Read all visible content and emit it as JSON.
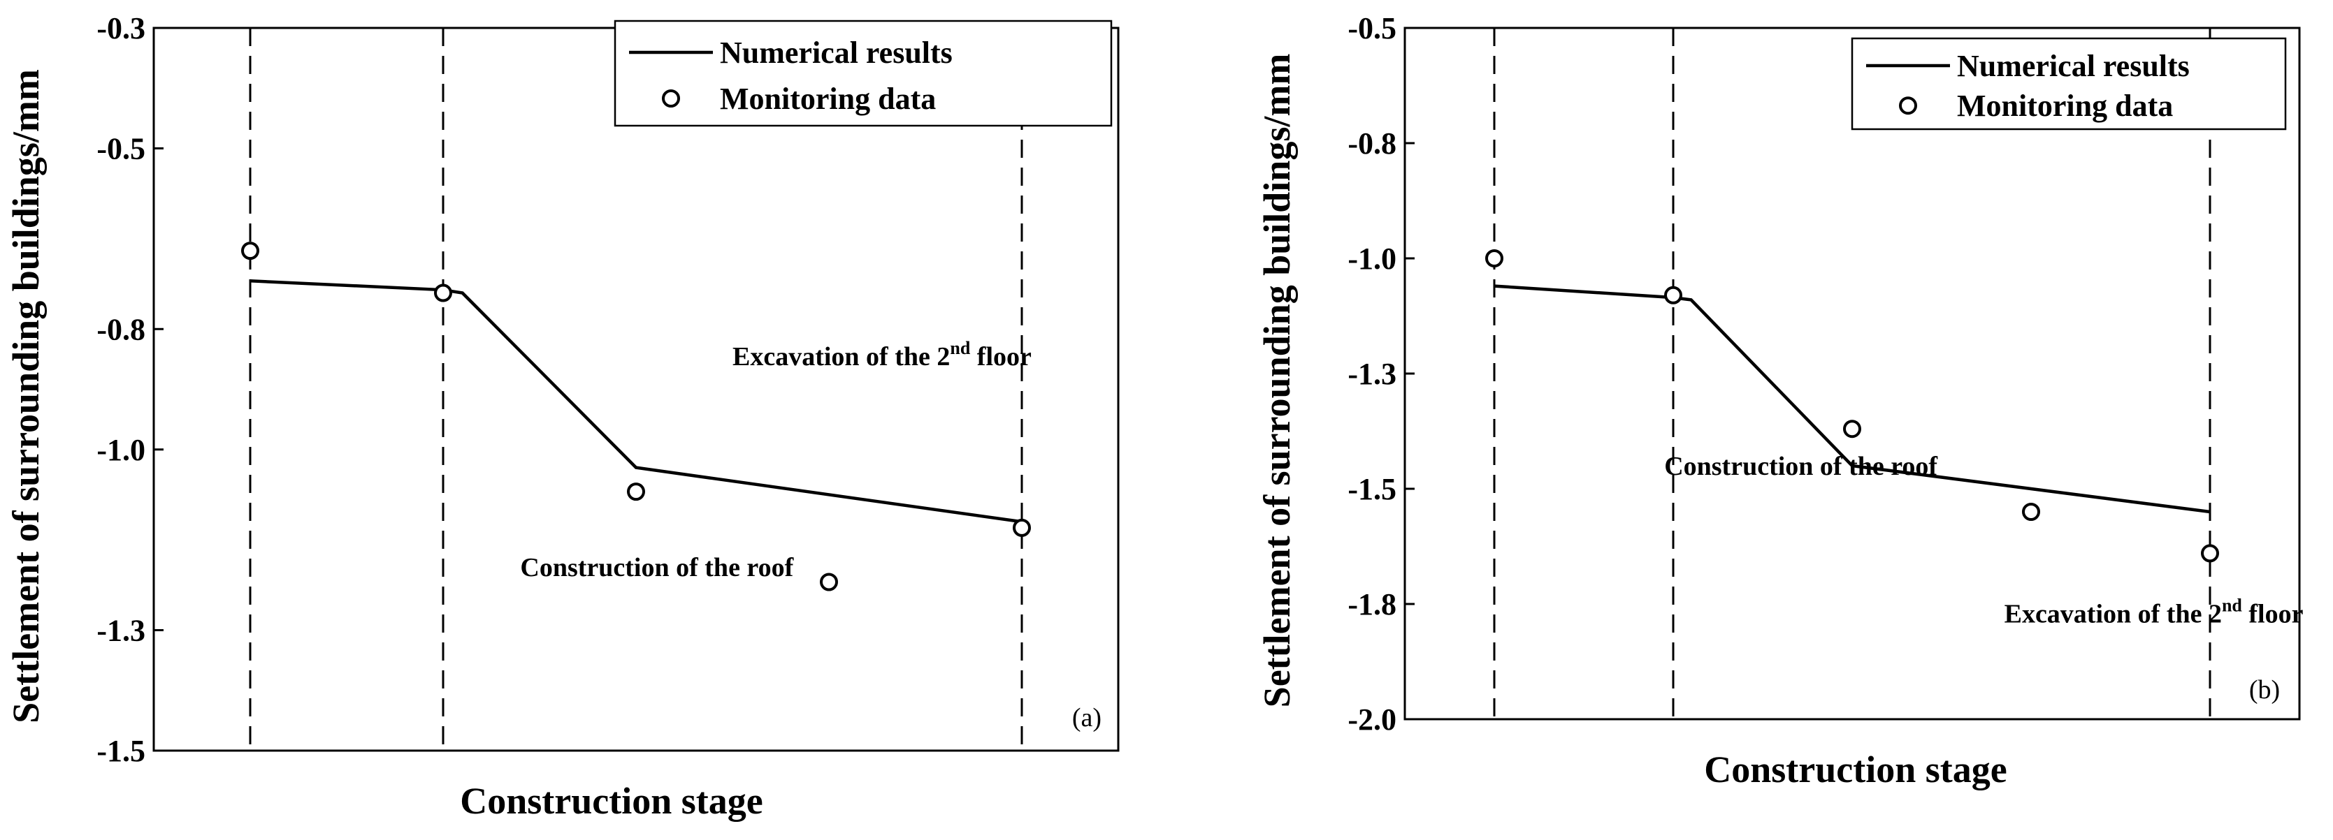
{
  "chart_data": [
    {
      "type": "line",
      "panel_label": "(a)",
      "xlabel": "Construction stage",
      "ylabel": "Settlement of surrounding buildings/mm",
      "ylim": [
        -1.5,
        -0.3
      ],
      "yticks": [
        "-0.3",
        "-0.5",
        "-0.8",
        "-1.0",
        "-1.3",
        "-1.5"
      ],
      "ytick_values": [
        -0.3,
        -0.5,
        -0.8,
        -1.0,
        -1.3,
        -1.5
      ],
      "xlim": [
        0,
        5
      ],
      "grid": false,
      "legend_position": "top-right",
      "stage_dividers": [
        0.5,
        1.5,
        4.5
      ],
      "series": [
        {
          "name": "Numerical results",
          "style": "line",
          "x": [
            0.5,
            1.5,
            1.6,
            2.5,
            4.5
          ],
          "y": [
            -0.72,
            -0.735,
            -0.74,
            -1.03,
            -1.12
          ]
        },
        {
          "name": "Monitoring data",
          "style": "marker",
          "x": [
            0.5,
            1.5,
            2.5,
            3.5,
            4.5
          ],
          "y": [
            -0.67,
            -0.74,
            -1.07,
            -1.22,
            -1.13
          ]
        }
      ],
      "annotations": [
        {
          "main": "Excavation of the 2",
          "sup": "nd",
          "rest": " floor",
          "x": 3.0,
          "y": -0.86
        },
        {
          "main": "Construction of the roof",
          "sup": "",
          "rest": "",
          "x": 1.9,
          "y": -1.21
        }
      ]
    },
    {
      "type": "line",
      "panel_label": "(b)",
      "xlabel": "Construction stage",
      "ylabel": "Settlement of surrounding buildings/mm",
      "ylim": [
        -2.0,
        -0.5
      ],
      "yticks": [
        "-0.5",
        "-0.8",
        "-1.0",
        "-1.3",
        "-1.5",
        "-1.8",
        "-2.0"
      ],
      "ytick_values": [
        -0.5,
        -0.75,
        -1.0,
        -1.25,
        -1.5,
        -1.75,
        -2.0
      ],
      "xlim": [
        0,
        5
      ],
      "grid": false,
      "legend_position": "top-right",
      "stage_dividers": [
        0.5,
        1.5,
        4.5
      ],
      "series": [
        {
          "name": "Numerical results",
          "style": "line",
          "x": [
            0.5,
            1.5,
            1.6,
            2.5,
            4.5
          ],
          "y": [
            -1.06,
            -1.085,
            -1.09,
            -1.45,
            -1.55
          ]
        },
        {
          "name": "Monitoring data",
          "style": "marker",
          "x": [
            0.5,
            1.5,
            2.5,
            3.5,
            4.5
          ],
          "y": [
            -1.0,
            -1.08,
            -1.37,
            -1.55,
            -1.64
          ]
        }
      ],
      "annotations": [
        {
          "main": "Construction of the roof",
          "sup": "",
          "rest": "",
          "x": 1.45,
          "y": -1.47
        },
        {
          "main": "Excavation of the 2",
          "sup": "nd",
          "rest": " floor",
          "x": 3.35,
          "y": -1.79
        }
      ]
    }
  ]
}
